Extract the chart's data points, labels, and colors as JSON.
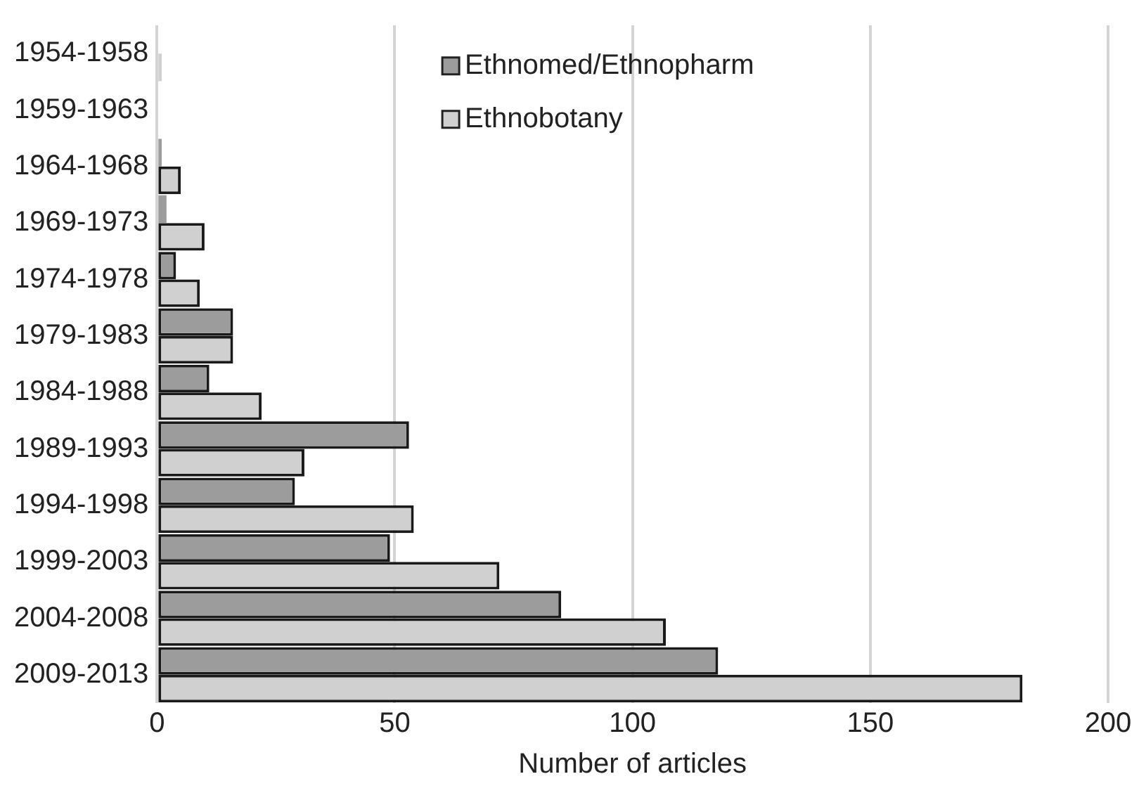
{
  "chart_data": {
    "type": "bar",
    "orientation": "horizontal",
    "xlabel": "Number of articles",
    "categories": [
      "1954-1958",
      "1959-1963",
      "1964-1968",
      "1969-1973",
      "1974-1978",
      "1979-1983",
      "1984-1988",
      "1989-1993",
      "1994-1998",
      "1999-2003",
      "2004-2008",
      "2009-2013"
    ],
    "series": [
      {
        "name": "Ethnomed/Ethnopharm",
        "color": "#9c9c9c",
        "values": [
          0,
          0,
          1,
          2,
          4,
          16,
          11,
          53,
          29,
          49,
          85,
          118
        ]
      },
      {
        "name": "Ethnobotany",
        "color": "#d0d0d0",
        "values": [
          1,
          0,
          5,
          10,
          9,
          16,
          22,
          31,
          54,
          72,
          107,
          182
        ]
      }
    ],
    "xlim": [
      0,
      200
    ],
    "xticks": [
      0,
      50,
      100,
      150,
      200
    ],
    "grid": "x",
    "legend": "top"
  }
}
